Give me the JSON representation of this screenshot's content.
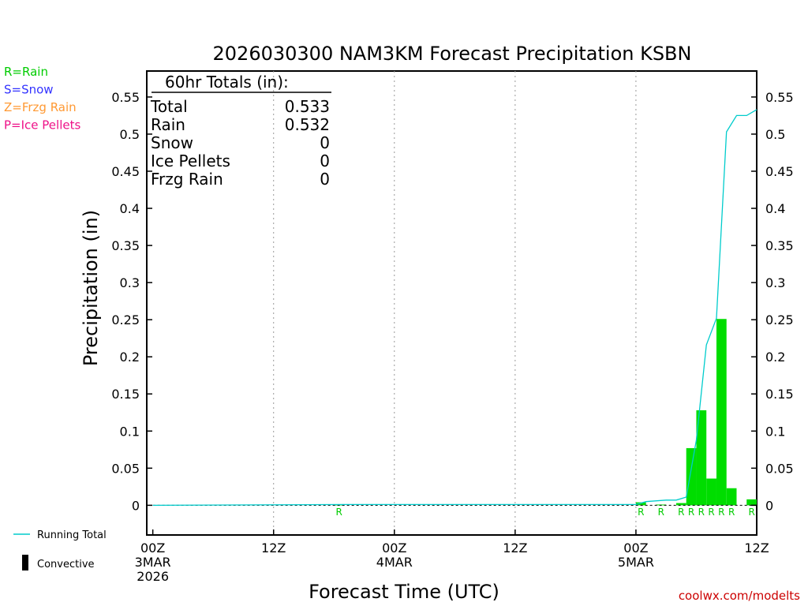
{
  "chart_data": {
    "type": "bar",
    "title": "2026030300 NAM3KM Forecast Precipitation KSBN",
    "xlabel": "Forecast Time (UTC)",
    "ylabel": "Precipitation (in)",
    "ylim": [
      -0.04,
      0.585
    ],
    "yticks": [
      0,
      0.05,
      0.1,
      0.15,
      0.2,
      0.25,
      0.3,
      0.35,
      0.4,
      0.45,
      0.5,
      0.55
    ],
    "ytick_labels": [
      "0",
      "0.05",
      "0.1",
      "0.15",
      "0.2",
      "0.25",
      "0.3",
      "0.35",
      "0.4",
      "0.45",
      "0.5",
      "0.55"
    ],
    "xlim_hours": [
      -0.6,
      60
    ],
    "xticks": [
      {
        "hour": 0,
        "lines": [
          "00Z",
          "3MAR",
          "2026"
        ]
      },
      {
        "hour": 12,
        "lines": [
          "12Z"
        ]
      },
      {
        "hour": 24,
        "lines": [
          "00Z",
          "4MAR"
        ]
      },
      {
        "hour": 36,
        "lines": [
          "12Z"
        ]
      },
      {
        "hour": 48,
        "lines": [
          "00Z",
          "5MAR"
        ]
      },
      {
        "hour": 60,
        "lines": [
          "12Z"
        ]
      }
    ],
    "grid": "vertical dotted",
    "bar_color": "#00dd00",
    "line_color": "#00cccc",
    "hourly_bars": [
      {
        "hour": 19,
        "value": 0.001
      },
      {
        "hour": 49,
        "value": 0.004
      },
      {
        "hour": 51,
        "value": 0.001
      },
      {
        "hour": 53,
        "value": 0.003
      },
      {
        "hour": 54,
        "value": 0.077
      },
      {
        "hour": 55,
        "value": 0.128
      },
      {
        "hour": 56,
        "value": 0.036
      },
      {
        "hour": 57,
        "value": 0.251
      },
      {
        "hour": 58,
        "value": 0.023
      },
      {
        "hour": 60,
        "value": 0.008
      }
    ],
    "running_total": {
      "name": "Running Total",
      "hours": [
        0,
        19,
        48,
        49,
        51,
        52,
        53,
        54,
        55,
        56,
        57,
        58,
        59,
        60
      ],
      "values": [
        0,
        0.001,
        0.001,
        0.005,
        0.007,
        0.007,
        0.011,
        0.088,
        0.216,
        0.252,
        0.503,
        0.525,
        0.525,
        0.533
      ]
    },
    "precip_type_marks": [
      {
        "hour": 19,
        "label": "R"
      },
      {
        "hour": 49,
        "label": "R"
      },
      {
        "hour": 51,
        "label": "R"
      },
      {
        "hour": 53,
        "label": "R"
      },
      {
        "hour": 54,
        "label": "R"
      },
      {
        "hour": 55,
        "label": "R"
      },
      {
        "hour": 56,
        "label": "R"
      },
      {
        "hour": 57,
        "label": "R"
      },
      {
        "hour": 58,
        "label": "R"
      },
      {
        "hour": 60,
        "label": "R"
      }
    ]
  },
  "type_legend": [
    {
      "label": "R=Rain",
      "color": "#00cc00"
    },
    {
      "label": "S=Snow",
      "color": "#3333ff"
    },
    {
      "label": "Z=Frzg Rain",
      "color": "#ff9933"
    },
    {
      "label": "P=Ice Pellets",
      "color": "#ee1188"
    }
  ],
  "totals_box": {
    "heading": "60hr Totals (in):",
    "rows": [
      {
        "label": "Total",
        "value": "0.533"
      },
      {
        "label": "Rain",
        "value": "0.532"
      },
      {
        "label": "Snow",
        "value": "0"
      },
      {
        "label": "Ice Pellets",
        "value": "0"
      },
      {
        "label": "Frzg Rain",
        "value": "0"
      }
    ]
  },
  "bottom_legend": {
    "running_total": "Running Total",
    "convective": "Convective"
  },
  "credit": "coolwx.com/modelts"
}
